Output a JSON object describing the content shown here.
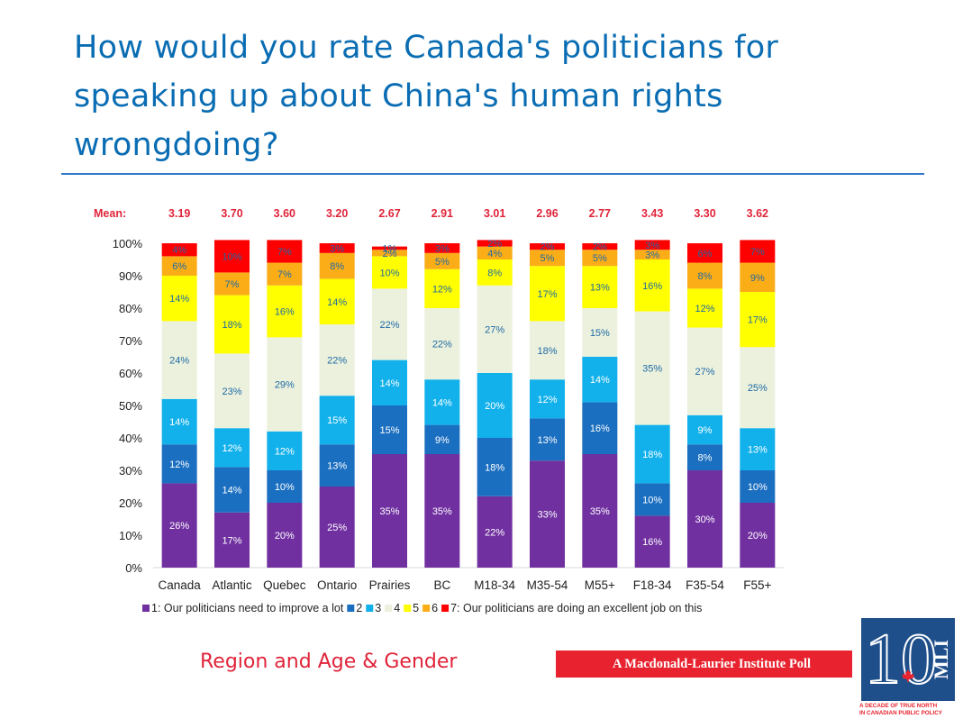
{
  "title": "How would you rate Canada's politicians for speaking up about China's human rights wrongdoing?",
  "subtitle": "Region and Age & Gender",
  "banner": "A Macdonald-Laurier Institute Poll",
  "logo": {
    "number": "10",
    "letters": "MLI",
    "tagline_1": "A DECADE OF TRUE NORTH",
    "tagline_2": "IN CANADIAN PUBLIC POLICY",
    "icon": "maple-leaf-icon"
  },
  "colors": {
    "title": "#0a6db3",
    "mean_label": "#e0243a",
    "accent_red": "#e8232f",
    "logo_blue": "#1f4f8a"
  },
  "chart_data": {
    "type": "bar",
    "stacked": true,
    "mean_label": "Mean:",
    "means": [
      "3.19",
      "3.70",
      "3.60",
      "3.20",
      "2.67",
      "2.91",
      "3.01",
      "2.96",
      "2.77",
      "3.43",
      "3.30",
      "3.62"
    ],
    "categories": [
      "Canada",
      "Atlantic",
      "Quebec",
      "Ontario",
      "Prairies",
      "BC",
      "M18-34",
      "M35-54",
      "M55+",
      "F18-34",
      "F35-54",
      "F55+"
    ],
    "yticks": [
      "0%",
      "10%",
      "20%",
      "30%",
      "40%",
      "50%",
      "60%",
      "70%",
      "80%",
      "90%",
      "100%"
    ],
    "ylim": [
      0,
      100
    ],
    "legend_position": "bottom",
    "series": [
      {
        "name": "1: Our politicians need to improve a lot",
        "color": "#7030a0",
        "label_color": "#ffffff",
        "values": [
          26,
          17,
          20,
          25,
          35,
          35,
          22,
          33,
          35,
          16,
          30,
          20
        ]
      },
      {
        "name": "2",
        "color": "#1b6fc0",
        "label_color": "#ffffff",
        "values": [
          12,
          14,
          10,
          13,
          15,
          9,
          18,
          13,
          16,
          10,
          8,
          10
        ]
      },
      {
        "name": "3",
        "color": "#12b1eb",
        "label_color": "#ffffff",
        "values": [
          14,
          12,
          12,
          15,
          14,
          14,
          20,
          12,
          14,
          18,
          9,
          13
        ]
      },
      {
        "name": "4",
        "color": "#ebf1dd",
        "label_color": "#1f6aa5",
        "values": [
          24,
          23,
          29,
          22,
          22,
          22,
          27,
          18,
          15,
          35,
          27,
          25
        ]
      },
      {
        "name": "5",
        "color": "#ffff00",
        "label_color": "#1f6aa5",
        "values": [
          14,
          18,
          16,
          14,
          10,
          12,
          8,
          17,
          13,
          16,
          12,
          17
        ]
      },
      {
        "name": "6",
        "color": "#fbad18",
        "label_color": "#1f6aa5",
        "values": [
          6,
          7,
          7,
          8,
          2,
          5,
          4,
          5,
          5,
          3,
          8,
          9
        ]
      },
      {
        "name": "7: Our politicians are doing an excellent job on this",
        "color": "#ff0000",
        "label_color": "#1f6aa5",
        "values": [
          4,
          10,
          7,
          3,
          1,
          3,
          2,
          2,
          2,
          3,
          6,
          7
        ]
      }
    ]
  }
}
